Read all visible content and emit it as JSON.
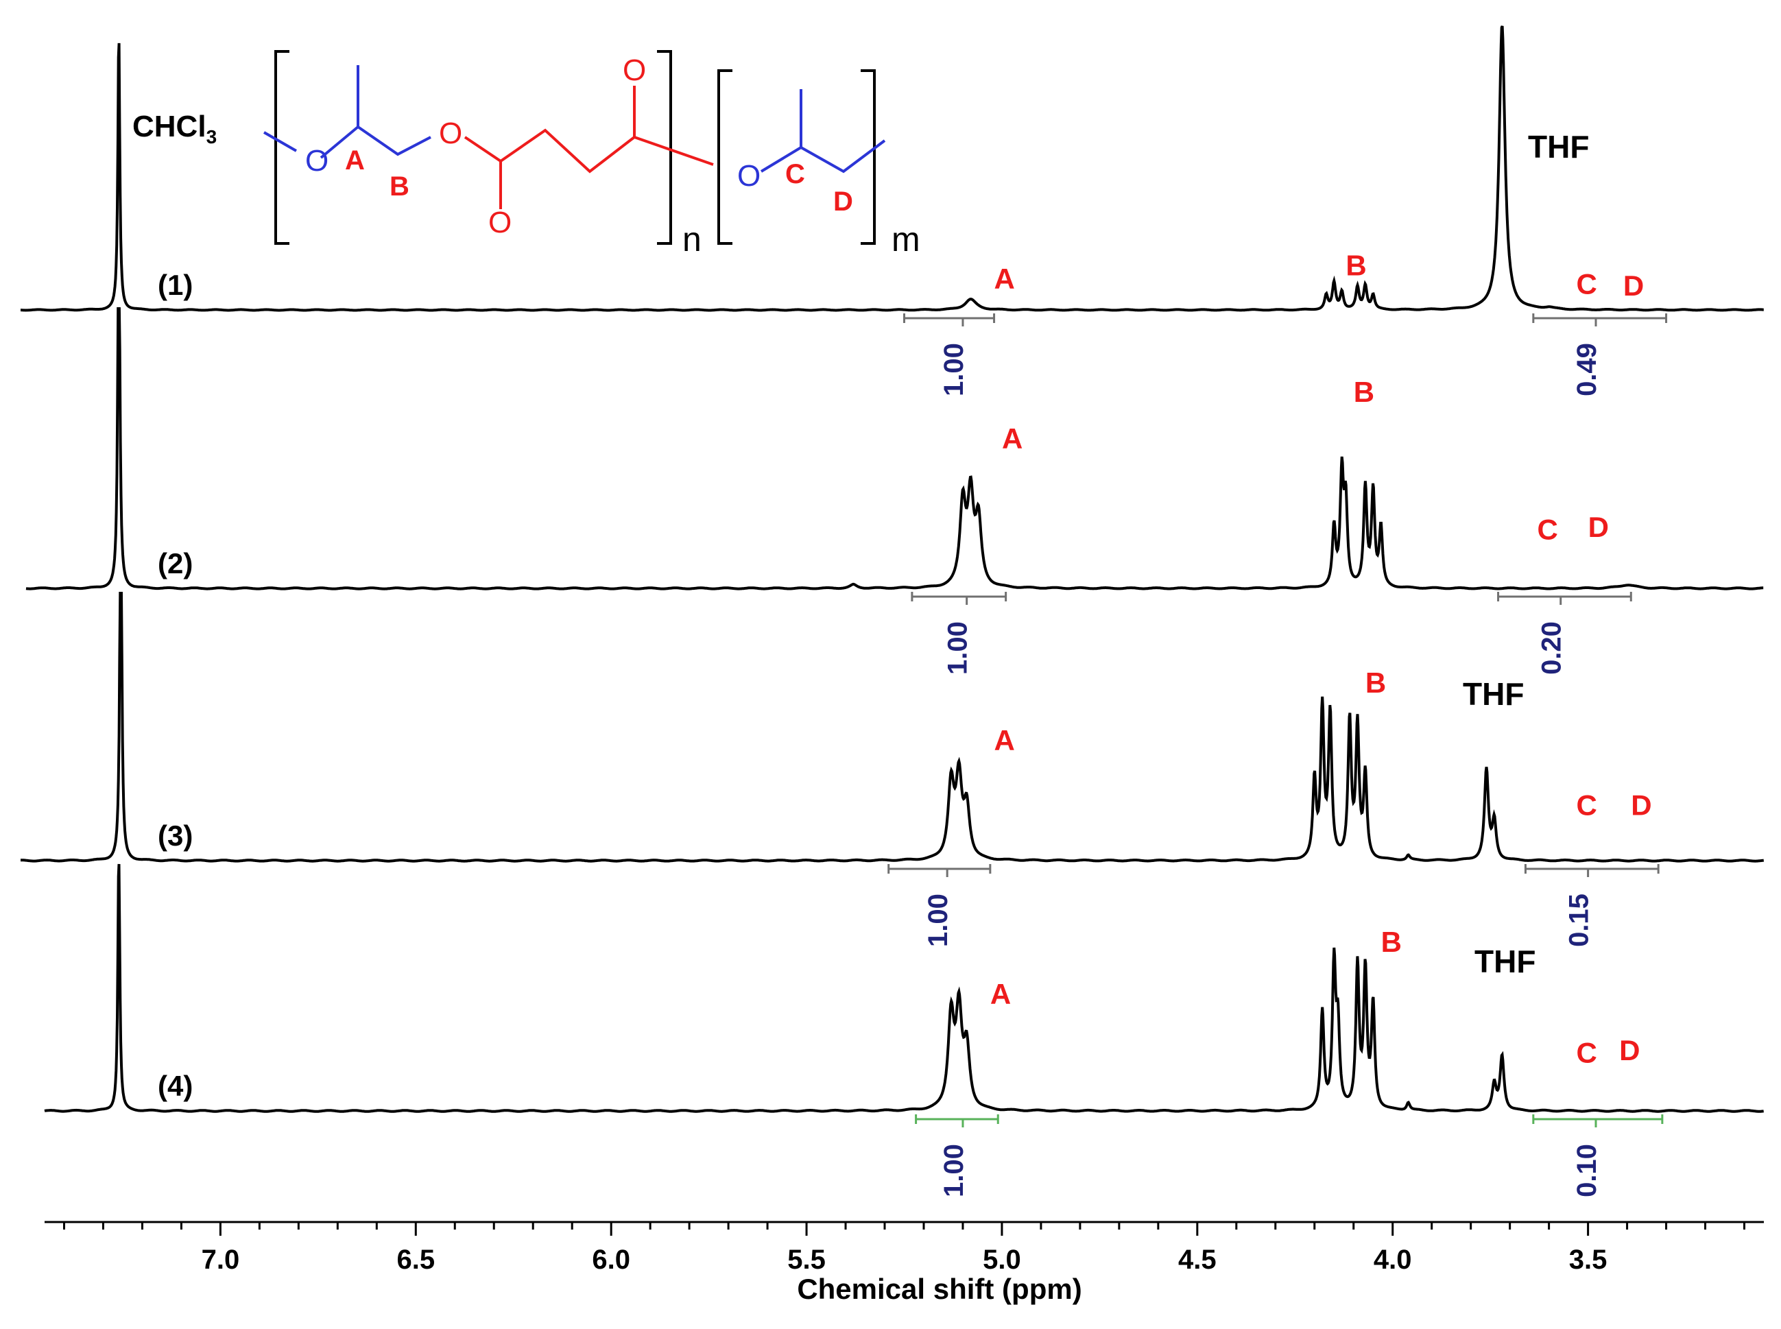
{
  "chart_data": {
    "type": "line",
    "title": "",
    "xlabel": "Chemical shift (ppm)",
    "ylabel": "",
    "xlim": [
      7.45,
      3.05
    ],
    "x_reversed": true,
    "grid": false,
    "xticks": [
      7.0,
      6.5,
      6.0,
      5.5,
      5.0,
      4.5,
      4.0,
      3.5
    ],
    "xtick_labels": [
      "7.0",
      "6.5",
      "6.0",
      "5.5",
      "5.0",
      "4.5",
      "4.0",
      "3.5"
    ],
    "solvent_label": "CHCl",
    "solvent_subscript": "3",
    "solvent_shift": 7.26,
    "series": [
      {
        "name": "(1)",
        "peaks": [
          {
            "shift": 7.26,
            "height": 3.1,
            "width": 0.006
          },
          {
            "shift": 5.08,
            "height": 0.12,
            "width": 0.035
          },
          {
            "shift": 4.17,
            "height": 0.16,
            "width": 0.01
          },
          {
            "shift": 4.15,
            "height": 0.3,
            "width": 0.01
          },
          {
            "shift": 4.13,
            "height": 0.2,
            "width": 0.01
          },
          {
            "shift": 4.09,
            "height": 0.25,
            "width": 0.01
          },
          {
            "shift": 4.07,
            "height": 0.27,
            "width": 0.01
          },
          {
            "shift": 4.05,
            "height": 0.16,
            "width": 0.01
          },
          {
            "shift": 3.72,
            "height": 3.2,
            "width": 0.018
          },
          {
            "shift": 3.6,
            "height": 0.02,
            "width": 0.03
          }
        ],
        "labels": [
          {
            "text": "A",
            "shift": 5.02,
            "level": 0.24
          },
          {
            "text": "B",
            "shift": 4.12,
            "level": 0.39
          },
          {
            "text": "C",
            "shift": 3.53,
            "level": 0.18
          },
          {
            "text": "D",
            "shift": 3.41,
            "level": 0.16
          }
        ],
        "solvent_peak_label": "THF",
        "integrals": [
          {
            "label": "1.00",
            "from": 5.25,
            "to": 5.02,
            "center": 5.1
          },
          {
            "label": "0.49",
            "from": 3.64,
            "to": 3.3,
            "center": 3.48
          }
        ]
      },
      {
        "name": "(2)",
        "peaks": [
          {
            "shift": 7.26,
            "height": 3.6,
            "width": 0.006
          },
          {
            "shift": 5.1,
            "height": 0.7,
            "width": 0.018
          },
          {
            "shift": 5.08,
            "height": 0.75,
            "width": 0.018
          },
          {
            "shift": 5.06,
            "height": 0.55,
            "width": 0.018
          },
          {
            "shift": 4.15,
            "height": 0.5,
            "width": 0.01
          },
          {
            "shift": 4.13,
            "height": 0.95,
            "width": 0.01
          },
          {
            "shift": 4.12,
            "height": 0.7,
            "width": 0.01
          },
          {
            "shift": 4.07,
            "height": 0.85,
            "width": 0.01
          },
          {
            "shift": 4.05,
            "height": 0.82,
            "width": 0.01
          },
          {
            "shift": 4.03,
            "height": 0.5,
            "width": 0.01
          },
          {
            "shift": 5.38,
            "height": 0.03,
            "width": 0.02
          },
          {
            "shift": 3.4,
            "height": 0.03,
            "width": 0.05
          }
        ],
        "labels": [
          {
            "text": "A",
            "shift": 5.0,
            "level": 1.2
          },
          {
            "text": "B",
            "shift": 4.1,
            "level": 1.6
          },
          {
            "text": "C",
            "shift": 3.63,
            "level": 0.42
          },
          {
            "text": "D",
            "shift": 3.5,
            "level": 0.44
          }
        ],
        "integrals": [
          {
            "label": "1.00",
            "from": 5.23,
            "to": 4.99,
            "center": 5.09
          },
          {
            "label": "0.20",
            "from": 3.73,
            "to": 3.39,
            "center": 3.57
          }
        ]
      },
      {
        "name": "(3)",
        "peaks": [
          {
            "shift": 7.255,
            "height": 3.3,
            "width": 0.006
          },
          {
            "shift": 5.13,
            "height": 0.62,
            "width": 0.018
          },
          {
            "shift": 5.11,
            "height": 0.65,
            "width": 0.018
          },
          {
            "shift": 5.09,
            "height": 0.42,
            "width": 0.018
          },
          {
            "shift": 4.2,
            "height": 0.65,
            "width": 0.01
          },
          {
            "shift": 4.18,
            "height": 1.25,
            "width": 0.01
          },
          {
            "shift": 4.16,
            "height": 1.2,
            "width": 0.01
          },
          {
            "shift": 4.11,
            "height": 1.15,
            "width": 0.01
          },
          {
            "shift": 4.09,
            "height": 1.1,
            "width": 0.01
          },
          {
            "shift": 4.07,
            "height": 0.7,
            "width": 0.01
          },
          {
            "shift": 3.76,
            "height": 0.75,
            "width": 0.012
          },
          {
            "shift": 3.74,
            "height": 0.32,
            "width": 0.012
          },
          {
            "shift": 3.96,
            "height": 0.04,
            "width": 0.01
          }
        ],
        "labels": [
          {
            "text": "A",
            "shift": 5.02,
            "level": 0.92
          },
          {
            "text": "B",
            "shift": 4.07,
            "level": 1.4
          },
          {
            "text": "C",
            "shift": 3.53,
            "level": 0.38
          },
          {
            "text": "D",
            "shift": 3.39,
            "level": 0.38
          }
        ],
        "solvent_peak_label": "THF",
        "integrals": [
          {
            "label": "1.00",
            "from": 5.29,
            "to": 5.03,
            "center": 5.14
          },
          {
            "label": "0.15",
            "from": 3.66,
            "to": 3.32,
            "center": 3.5
          }
        ]
      },
      {
        "name": "(4)",
        "peaks": [
          {
            "shift": 7.26,
            "height": 2.0,
            "width": 0.006
          },
          {
            "shift": 5.13,
            "height": 0.7,
            "width": 0.018
          },
          {
            "shift": 5.11,
            "height": 0.72,
            "width": 0.018
          },
          {
            "shift": 5.09,
            "height": 0.45,
            "width": 0.018
          },
          {
            "shift": 4.18,
            "height": 0.75,
            "width": 0.01
          },
          {
            "shift": 4.15,
            "height": 1.1,
            "width": 0.01
          },
          {
            "shift": 4.14,
            "height": 0.6,
            "width": 0.01
          },
          {
            "shift": 4.09,
            "height": 1.1,
            "width": 0.01
          },
          {
            "shift": 4.07,
            "height": 1.05,
            "width": 0.01
          },
          {
            "shift": 4.05,
            "height": 0.8,
            "width": 0.01
          },
          {
            "shift": 3.72,
            "height": 0.42,
            "width": 0.012
          },
          {
            "shift": 3.74,
            "height": 0.2,
            "width": 0.012
          },
          {
            "shift": 3.96,
            "height": 0.06,
            "width": 0.01
          }
        ],
        "labels": [
          {
            "text": "A",
            "shift": 5.03,
            "level": 0.82
          },
          {
            "text": "B",
            "shift": 4.03,
            "level": 1.22
          },
          {
            "text": "C",
            "shift": 3.53,
            "level": 0.37
          },
          {
            "text": "D",
            "shift": 3.42,
            "level": 0.39
          }
        ],
        "solvent_peak_label": "THF",
        "integrals": [
          {
            "label": "1.00",
            "from": 5.22,
            "to": 5.01,
            "center": 5.1,
            "color": "#58b25a"
          },
          {
            "label": "0.10",
            "from": 3.64,
            "to": 3.31,
            "center": 3.48,
            "color": "#58b25a"
          }
        ]
      }
    ]
  },
  "structure": {
    "label_A": "A",
    "label_B": "B",
    "label_C": "C",
    "label_D": "D",
    "oxygen": "O",
    "subscript_n": "n",
    "subscript_m": "m"
  },
  "colors": {
    "trace": "#000000",
    "label": "#ee1c1c",
    "integral_value": "#1f237a",
    "integral_bar": "#707070",
    "structure_blue": "#2b35d6",
    "structure_red": "#ee1c1c"
  }
}
